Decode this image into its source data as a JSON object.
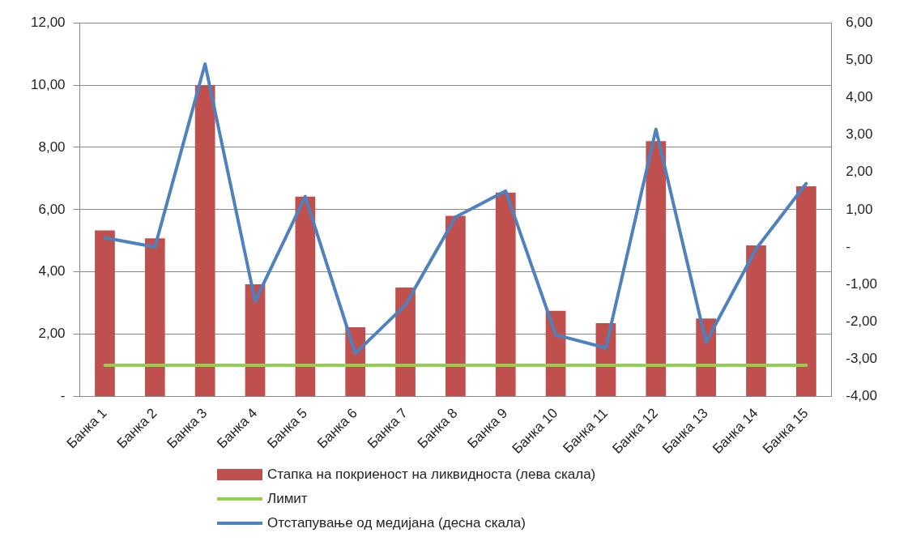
{
  "chart_data": {
    "type": "bar",
    "categories": [
      "Банка 1",
      "Банка 2",
      "Банка 3",
      "Банка 4",
      "Банка 5",
      "Банка 6",
      "Банка 7",
      "Банка 8",
      "Банка 9",
      "Банка 10",
      "Банка 11",
      "Банка 12",
      "Банка 13",
      "Банка 14",
      "Банка 15"
    ],
    "series": [
      {
        "name": "Стапка на покриеност на ликвидноста (лева скала)",
        "color": "#c0504d",
        "values": [
          5.33,
          5.08,
          10.0,
          3.6,
          6.42,
          2.22,
          3.5,
          5.8,
          6.55,
          2.75,
          2.35,
          8.2,
          2.5,
          4.85,
          6.75
        ]
      },
      {
        "name": "Лимит",
        "type": "line",
        "color": "#92d050",
        "values": [
          1,
          1,
          1,
          1,
          1,
          1,
          1,
          1,
          1,
          1,
          1,
          1,
          1,
          1,
          1
        ]
      },
      {
        "name": "Отстапување од медијана (десна скала)",
        "type": "line",
        "axis": "y2",
        "color": "#4f81bd",
        "values": [
          0.25,
          0.0,
          4.9,
          -1.45,
          1.35,
          -2.85,
          -1.55,
          0.8,
          1.5,
          -2.35,
          -2.7,
          3.15,
          -2.55,
          -0.05,
          1.7
        ]
      }
    ],
    "ylim": [
      0,
      12
    ],
    "yticks": [
      {
        "value": 0,
        "label": "-"
      },
      {
        "value": 2,
        "label": "2,00"
      },
      {
        "value": 4,
        "label": "4,00"
      },
      {
        "value": 6,
        "label": "6,00"
      },
      {
        "value": 8,
        "label": "8,00"
      },
      {
        "value": 10,
        "label": "10,00"
      },
      {
        "value": 12,
        "label": "12,00"
      }
    ],
    "y2lim": [
      -4,
      6
    ],
    "y2ticks": [
      {
        "value": -4,
        "label": "-4,00"
      },
      {
        "value": -3,
        "label": "-3,00"
      },
      {
        "value": -2,
        "label": "-2,00"
      },
      {
        "value": -1,
        "label": "-1,00"
      },
      {
        "value": 0,
        "label": "-"
      },
      {
        "value": 1,
        "label": "1,00"
      },
      {
        "value": 2,
        "label": "2,00"
      },
      {
        "value": 3,
        "label": "3,00"
      },
      {
        "value": 4,
        "label": "4,00"
      },
      {
        "value": 5,
        "label": "5,00"
      },
      {
        "value": 6,
        "label": "6,00"
      }
    ],
    "grid": "y",
    "legend": "bottom",
    "marker": "none",
    "line_style": "solid"
  }
}
